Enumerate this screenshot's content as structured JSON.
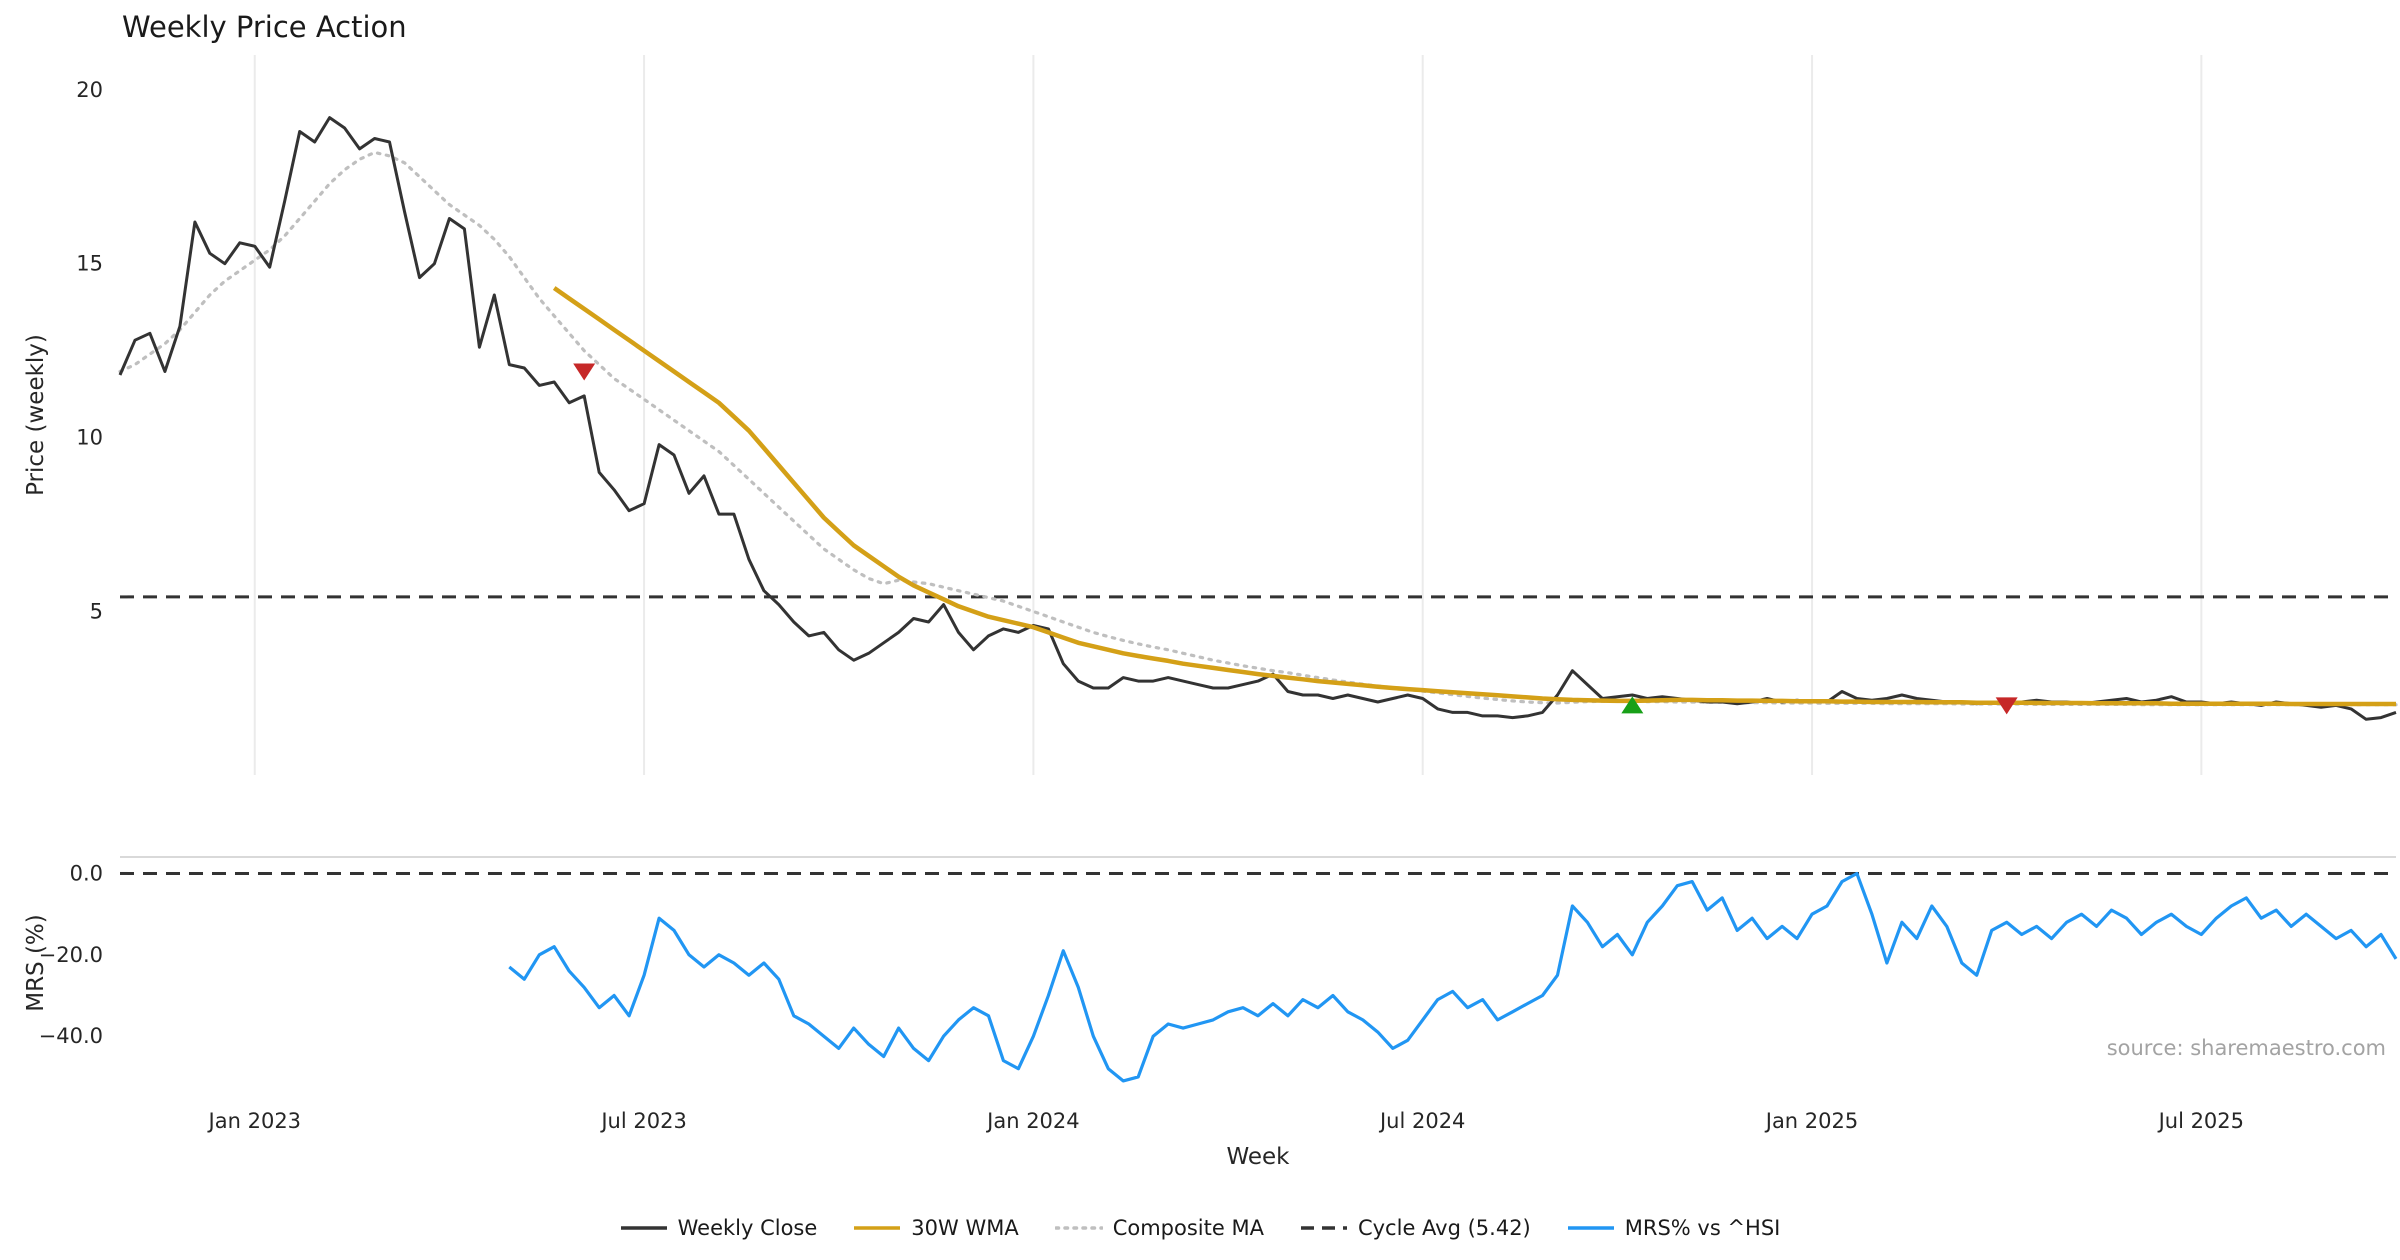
{
  "source": "source: sharemaestro.com",
  "legend": [
    {
      "label": "Weekly Close",
      "color": "#333333",
      "style": "solid"
    },
    {
      "label": "30W WMA",
      "color": "#D4A017",
      "style": "solid"
    },
    {
      "label": "Composite MA",
      "color": "#bfbfbf",
      "style": "dotted"
    },
    {
      "label": "Cycle Avg (5.42)",
      "color": "#333333",
      "style": "dashed"
    },
    {
      "label": "MRS% vs ^HSI",
      "color": "#2196F3",
      "style": "solid"
    }
  ],
  "chart_data": {
    "type": "line",
    "title": "Weekly Price Action",
    "xlabel": "Week",
    "x_unit": "week_index_from_Nov_2022",
    "x_range": [
      0,
      152
    ],
    "x_ticks": [
      {
        "week": 9,
        "label": "Jan 2023"
      },
      {
        "week": 35,
        "label": "Jul 2023"
      },
      {
        "week": 61,
        "label": "Jan 2024"
      },
      {
        "week": 87,
        "label": "Jul 2024"
      },
      {
        "week": 113,
        "label": "Jan 2025"
      },
      {
        "week": 139,
        "label": "Jul 2025"
      }
    ],
    "grid": "vertical-light-gray-top-panel",
    "legend_position": "bottom-center",
    "panels": {
      "price": {
        "ylabel": "Price (weekly)",
        "ylim": [
          0.3,
          21.0
        ],
        "yticks": [
          {
            "value": 20,
            "label": "20"
          },
          {
            "value": 15,
            "label": "15"
          },
          {
            "value": 10,
            "label": "10"
          },
          {
            "value": 5,
            "label": "5"
          }
        ],
        "ref_line": {
          "value": 5.42,
          "label": "Cycle Avg (5.42)",
          "style": "dashed",
          "color": "#333333"
        }
      },
      "mrs": {
        "ylabel": "MRS (%)",
        "ylim": [
          -52,
          7
        ],
        "yticks": [
          {
            "value": 0,
            "label": "0.0"
          },
          {
            "value": -20,
            "label": "−20.0"
          },
          {
            "value": -40,
            "label": "−40.0"
          }
        ],
        "ref_line": {
          "value": 0.0,
          "label": "zero line",
          "style": "dashed",
          "color": "#333333"
        }
      }
    },
    "series": [
      {
        "name": "Weekly Close",
        "panel": "price",
        "color": "#333333",
        "style": "solid",
        "width": 3,
        "start_week": 0,
        "values": [
          11.8,
          12.8,
          13.0,
          11.9,
          13.2,
          16.2,
          15.3,
          15.0,
          15.6,
          15.5,
          14.9,
          16.8,
          18.8,
          18.5,
          19.2,
          18.9,
          18.3,
          18.6,
          18.5,
          16.5,
          14.6,
          15.0,
          16.3,
          16.0,
          12.6,
          14.1,
          12.1,
          12.0,
          11.5,
          11.6,
          11.0,
          11.2,
          9.0,
          8.5,
          7.9,
          8.1,
          9.8,
          9.5,
          8.4,
          8.9,
          7.8,
          7.8,
          6.5,
          5.6,
          5.2,
          4.7,
          4.3,
          4.4,
          3.9,
          3.6,
          3.8,
          4.1,
          4.4,
          4.8,
          4.7,
          5.2,
          4.4,
          3.9,
          4.3,
          4.5,
          4.4,
          4.6,
          4.5,
          3.5,
          3.0,
          2.8,
          2.8,
          3.1,
          3.0,
          3.0,
          3.1,
          3.0,
          2.9,
          2.8,
          2.8,
          2.9,
          3.0,
          3.2,
          2.7,
          2.6,
          2.6,
          2.5,
          2.6,
          2.5,
          2.4,
          2.5,
          2.6,
          2.5,
          2.2,
          2.1,
          2.1,
          2.0,
          2.0,
          1.95,
          2.0,
          2.1,
          2.6,
          3.3,
          2.9,
          2.5,
          2.55,
          2.6,
          2.5,
          2.55,
          2.5,
          2.45,
          2.4,
          2.4,
          2.35,
          2.4,
          2.5,
          2.4,
          2.45,
          2.4,
          2.4,
          2.7,
          2.5,
          2.45,
          2.5,
          2.6,
          2.5,
          2.45,
          2.4,
          2.4,
          2.35,
          2.4,
          2.35,
          2.4,
          2.45,
          2.4,
          2.4,
          2.35,
          2.4,
          2.45,
          2.5,
          2.4,
          2.45,
          2.55,
          2.4,
          2.4,
          2.35,
          2.4,
          2.35,
          2.3,
          2.4,
          2.35,
          2.3,
          2.25,
          2.3,
          2.2,
          1.9,
          1.95,
          2.1
        ]
      },
      {
        "name": "30W WMA",
        "panel": "price",
        "color": "#D4A017",
        "style": "solid",
        "width": 4.5,
        "start_week": 29,
        "values": [
          14.3,
          14.0,
          13.7,
          13.4,
          13.1,
          12.8,
          12.5,
          12.2,
          11.9,
          11.6,
          11.3,
          11.0,
          10.6,
          10.2,
          9.7,
          9.2,
          8.7,
          8.2,
          7.7,
          7.3,
          6.9,
          6.6,
          6.3,
          6.0,
          5.75,
          5.55,
          5.35,
          5.15,
          5.0,
          4.85,
          4.75,
          4.65,
          4.55,
          4.4,
          4.25,
          4.1,
          4.0,
          3.9,
          3.8,
          3.72,
          3.65,
          3.58,
          3.5,
          3.44,
          3.38,
          3.32,
          3.26,
          3.2,
          3.15,
          3.1,
          3.05,
          3.0,
          2.96,
          2.92,
          2.88,
          2.84,
          2.8,
          2.77,
          2.74,
          2.71,
          2.68,
          2.65,
          2.62,
          2.59,
          2.56,
          2.53,
          2.5,
          2.48,
          2.46,
          2.45,
          2.44,
          2.43,
          2.43,
          2.44,
          2.45,
          2.46,
          2.46,
          2.45,
          2.45,
          2.44,
          2.44,
          2.43,
          2.43,
          2.42,
          2.42,
          2.42,
          2.41,
          2.41,
          2.4,
          2.4,
          2.4,
          2.4,
          2.39,
          2.39,
          2.39,
          2.38,
          2.38,
          2.38,
          2.38,
          2.37,
          2.37,
          2.37,
          2.37,
          2.36,
          2.36,
          2.36,
          2.36,
          2.36,
          2.35,
          2.35,
          2.35,
          2.35,
          2.35,
          2.35,
          2.35,
          2.35,
          2.34,
          2.34,
          2.34,
          2.34,
          2.34,
          2.34,
          2.34,
          2.34
        ]
      },
      {
        "name": "Composite MA",
        "panel": "price",
        "color": "#bfbfbf",
        "style": "dotted",
        "width": 3.2,
        "start_week": 0,
        "values": [
          11.9,
          12.1,
          12.4,
          12.7,
          13.1,
          13.6,
          14.1,
          14.5,
          14.8,
          15.1,
          15.4,
          15.8,
          16.3,
          16.8,
          17.3,
          17.7,
          18.0,
          18.2,
          18.1,
          17.9,
          17.5,
          17.1,
          16.7,
          16.4,
          16.1,
          15.7,
          15.2,
          14.6,
          14.0,
          13.5,
          13.0,
          12.5,
          12.1,
          11.7,
          11.4,
          11.1,
          10.8,
          10.5,
          10.2,
          9.9,
          9.6,
          9.2,
          8.8,
          8.4,
          8.0,
          7.6,
          7.2,
          6.8,
          6.5,
          6.2,
          5.95,
          5.8,
          5.9,
          5.85,
          5.8,
          5.7,
          5.6,
          5.5,
          5.4,
          5.3,
          5.15,
          5.0,
          4.85,
          4.7,
          4.55,
          4.4,
          4.28,
          4.17,
          4.07,
          3.98,
          3.9,
          3.8,
          3.7,
          3.6,
          3.52,
          3.44,
          3.37,
          3.3,
          3.24,
          3.17,
          3.1,
          3.03,
          2.97,
          2.91,
          2.86,
          2.81,
          2.76,
          2.71,
          2.66,
          2.61,
          2.56,
          2.51,
          2.47,
          2.43,
          2.4,
          2.38,
          2.37,
          2.39,
          2.41,
          2.42,
          2.42,
          2.42,
          2.41,
          2.41,
          2.4,
          2.4,
          2.39,
          2.39,
          2.38,
          2.38,
          2.38,
          2.37,
          2.37,
          2.37,
          2.36,
          2.36,
          2.36,
          2.36,
          2.35,
          2.35,
          2.35,
          2.35,
          2.35,
          2.34,
          2.34,
          2.34,
          2.34,
          2.34,
          2.33,
          2.33,
          2.33,
          2.33,
          2.33,
          2.33,
          2.33,
          2.32,
          2.32,
          2.32,
          2.32,
          2.32,
          2.32,
          2.32,
          2.32,
          2.32,
          2.32,
          2.32,
          2.32,
          2.32,
          2.32,
          2.32,
          2.32,
          2.32,
          2.32
        ]
      },
      {
        "name": "MRS% vs ^HSI",
        "panel": "mrs",
        "color": "#2196F3",
        "style": "solid",
        "width": 3.2,
        "start_week": 26,
        "values": [
          -23,
          -26,
          -20,
          -18,
          -24,
          -28,
          -33,
          -30,
          -35,
          -25,
          -11,
          -14,
          -20,
          -23,
          -20,
          -22,
          -25,
          -22,
          -26,
          -35,
          -37,
          -40,
          -43,
          -38,
          -42,
          -45,
          -38,
          -43,
          -46,
          -40,
          -36,
          -33,
          -35,
          -46,
          -48,
          -40,
          -30,
          -19,
          -28,
          -40,
          -48,
          -51,
          -50,
          -40,
          -37,
          -38,
          -37,
          -36,
          -34,
          -33,
          -35,
          -32,
          -35,
          -31,
          -33,
          -30,
          -34,
          -36,
          -39,
          -43,
          -41,
          -36,
          -31,
          -29,
          -33,
          -31,
          -36,
          -34,
          -32,
          -30,
          -25,
          -8,
          -12,
          -18,
          -15,
          -20,
          -12,
          -8,
          -3,
          -2,
          -9,
          -6,
          -14,
          -11,
          -16,
          -13,
          -16,
          -10,
          -8,
          -2,
          0,
          -10,
          -22,
          -12,
          -16,
          -8,
          -13,
          -22,
          -25,
          -14,
          -12,
          -15,
          -13,
          -16,
          -12,
          -10,
          -13,
          -9,
          -11,
          -15,
          -12,
          -10,
          -13,
          -15,
          -11,
          -8,
          -6,
          -11,
          -9,
          -13,
          -10,
          -13,
          -16,
          -14,
          -18,
          -15,
          -21
        ]
      }
    ],
    "signals": [
      {
        "type": "sell",
        "week": 31,
        "price": 11.9
      },
      {
        "type": "buy",
        "week": 101,
        "price": 2.3
      },
      {
        "type": "sell",
        "week": 126,
        "price": 2.3
      }
    ],
    "signal_colors": {
      "buy": "#18A018",
      "sell": "#C62828"
    }
  }
}
